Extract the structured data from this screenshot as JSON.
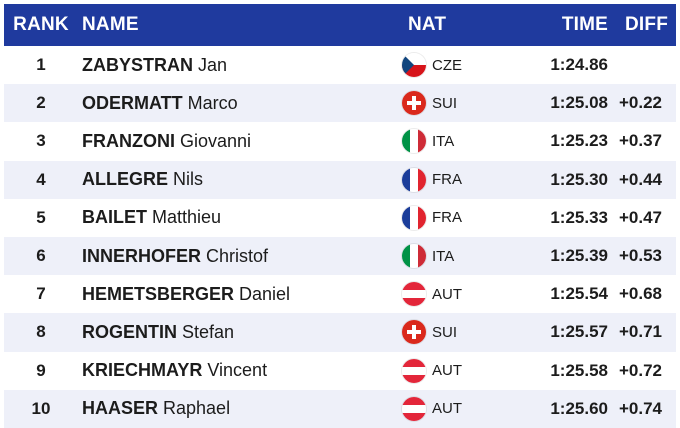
{
  "header": {
    "rank": "RANK",
    "name": "NAME",
    "nat": "NAT",
    "time": "TIME",
    "diff": "DIFF"
  },
  "colors": {
    "header_bg": "#1f3a9e",
    "row_alt_bg": "#eef0f9"
  },
  "results": [
    {
      "rank": "1",
      "surname": "ZABYSTRAN",
      "given": "Jan",
      "nat": "CZE",
      "flag": "cze-flag-icon",
      "time": "1:24.86",
      "diff": ""
    },
    {
      "rank": "2",
      "surname": "ODERMATT",
      "given": "Marco",
      "nat": "SUI",
      "flag": "sui-flag-icon",
      "time": "1:25.08",
      "diff": "+0.22"
    },
    {
      "rank": "3",
      "surname": "FRANZONI",
      "given": "Giovanni",
      "nat": "ITA",
      "flag": "ita-flag-icon",
      "time": "1:25.23",
      "diff": "+0.37"
    },
    {
      "rank": "4",
      "surname": "ALLEGRE",
      "given": "Nils",
      "nat": "FRA",
      "flag": "fra-flag-icon",
      "time": "1:25.30",
      "diff": "+0.44"
    },
    {
      "rank": "5",
      "surname": "BAILET",
      "given": "Matthieu",
      "nat": "FRA",
      "flag": "fra-flag-icon",
      "time": "1:25.33",
      "diff": "+0.47"
    },
    {
      "rank": "6",
      "surname": "INNERHOFER",
      "given": "Christof",
      "nat": "ITA",
      "flag": "ita-flag-icon",
      "time": "1:25.39",
      "diff": "+0.53"
    },
    {
      "rank": "7",
      "surname": "HEMETSBERGER",
      "given": "Daniel",
      "nat": "AUT",
      "flag": "aut-flag-icon",
      "time": "1:25.54",
      "diff": "+0.68"
    },
    {
      "rank": "8",
      "surname": "ROGENTIN",
      "given": "Stefan",
      "nat": "SUI",
      "flag": "sui-flag-icon",
      "time": "1:25.57",
      "diff": "+0.71"
    },
    {
      "rank": "9",
      "surname": "KRIECHMAYR",
      "given": "Vincent",
      "nat": "AUT",
      "flag": "aut-flag-icon",
      "time": "1:25.58",
      "diff": "+0.72"
    },
    {
      "rank": "10",
      "surname": "HAASER",
      "given": "Raphael",
      "nat": "AUT",
      "flag": "aut-flag-icon",
      "time": "1:25.60",
      "diff": "+0.74"
    }
  ]
}
